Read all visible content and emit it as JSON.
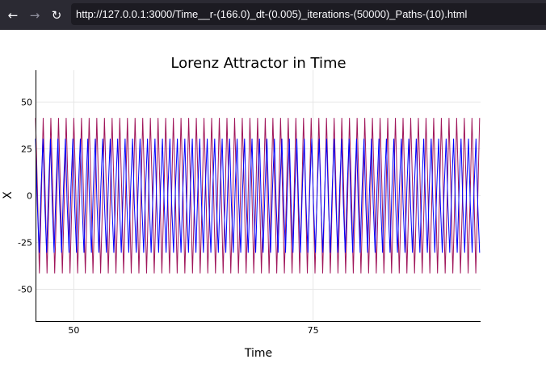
{
  "browser": {
    "url": "http://127.0.0.1:3000/Time__r-(166.0)_dt-(0.005)_iterations-(50000)_Paths-(10).html",
    "back_icon": "arrow-left-icon",
    "forward_icon": "arrow-right-icon",
    "reload_icon": "reload-icon",
    "toolbar_color": "#2b2a33",
    "urlbar_color": "#1c1b22"
  },
  "chart_data": {
    "type": "line",
    "title": "Lorenz Attractor in Time",
    "xlabel": "Time",
    "ylabel": "X",
    "xlim": [
      46,
      92.5
    ],
    "ylim": [
      -67,
      67
    ],
    "xticks": [
      50,
      75
    ],
    "yticks": [
      50,
      25,
      0,
      -25,
      -50
    ],
    "grid": true,
    "legend": "none",
    "colors": [
      "#0000ff",
      "#a0155a"
    ],
    "series": [
      {
        "color": "#0000ff",
        "profile": [
          [
            0.0,
            30.5
          ],
          [
            0.18,
            -4.0
          ],
          [
            0.38,
            -30.5
          ],
          [
            0.58,
            4.0
          ],
          [
            0.78,
            30.5
          ]
        ],
        "period": 0.78,
        "x": [
          46,
          92.5
        ],
        "y_range": [
          -41.5,
          41.5
        ]
      },
      {
        "color": "#a0155a",
        "profile": [
          [
            0.0,
            41.5
          ],
          [
            0.2,
            3.0
          ],
          [
            0.4,
            -41.5
          ],
          [
            0.6,
            -3.0
          ],
          [
            0.8,
            41.5
          ]
        ],
        "period": 0.8,
        "x": [
          46,
          92.5
        ],
        "y_range": [
          -41.5,
          41.5
        ]
      }
    ]
  }
}
